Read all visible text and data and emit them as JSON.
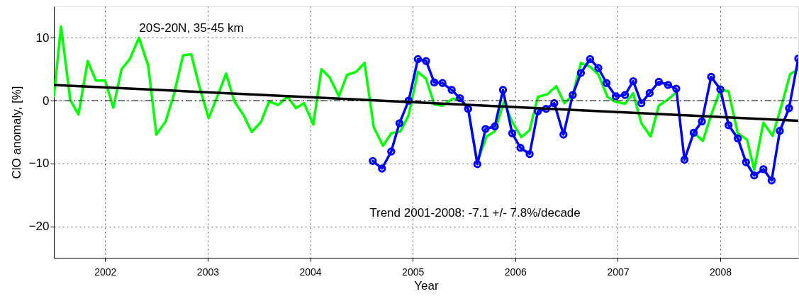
{
  "chart_data": {
    "type": "line",
    "xlabel": "Year",
    "ylabel": "ClO anomaly, [%]",
    "xlim": [
      2001.5,
      2008.76
    ],
    "ylim": [
      -25,
      15
    ],
    "xticks": [
      2002,
      2003,
      2004,
      2005,
      2006,
      2007,
      2008
    ],
    "yticks": [
      -20,
      -10,
      0,
      10
    ],
    "grid": true,
    "legend": false,
    "annotations": [
      "20S-20N, 35-45 km",
      "Trend 2001-2008: -7.1 +/- 7.8%/decade"
    ],
    "ref_lines": [
      {
        "axis": "y",
        "value": 0,
        "color": "#000000",
        "line_style": "dashed"
      }
    ],
    "series": [
      {
        "color": "#00ff00",
        "marker": "none",
        "x": [
          2001.5,
          2001.57,
          2001.66,
          2001.74,
          2001.83,
          2001.91,
          2002.0,
          2002.08,
          2002.16,
          2002.24,
          2002.33,
          2002.42,
          2002.5,
          2002.59,
          2002.67,
          2002.76,
          2002.84,
          2002.92,
          2003.01,
          2003.1,
          2003.18,
          2003.26,
          2003.35,
          2003.43,
          2003.52,
          2003.6,
          2003.69,
          2003.78,
          2003.86,
          2003.94,
          2004.03,
          2004.11,
          2004.19,
          2004.28,
          2004.36,
          2004.45,
          2004.53,
          2004.62,
          2004.71,
          2004.79,
          2004.88,
          2004.96,
          2005.05,
          2005.13,
          2005.21,
          2005.29,
          2005.39,
          2005.46,
          2005.54,
          2005.63,
          2005.72,
          2005.8,
          2005.89,
          2005.97,
          2006.06,
          2006.14,
          2006.22,
          2006.31,
          2006.4,
          2006.48,
          2006.56,
          2006.64,
          2006.73,
          2006.81,
          2006.9,
          2006.98,
          2007.07,
          2007.15,
          2007.23,
          2007.32,
          2007.4,
          2007.49,
          2007.57,
          2007.66,
          2007.74,
          2007.83,
          2007.91,
          2008.0,
          2008.08,
          2008.17,
          2008.26,
          2008.33,
          2008.42,
          2008.51,
          2008.6,
          2008.68,
          2008.76
        ],
        "values": [
          0.7,
          11.8,
          0.1,
          -2.2,
          6.3,
          3.2,
          3.2,
          -1.1,
          5.0,
          6.6,
          10.0,
          5.6,
          -5.4,
          -3.3,
          0.9,
          7.2,
          7.4,
          2.2,
          -2.8,
          0.9,
          4.3,
          -0.1,
          -2.3,
          -5.0,
          -3.4,
          -0.1,
          -0.7,
          0.7,
          -1.2,
          -0.4,
          -3.8,
          5.0,
          3.7,
          0.7,
          4.1,
          4.6,
          6.0,
          -4.2,
          -7.2,
          -5.2,
          -4.9,
          -2.3,
          4.6,
          3.5,
          -0.6,
          -0.8,
          0.3,
          0.3,
          -1.2,
          -9.8,
          -5.7,
          -4.9,
          -0.1,
          -3.4,
          -5.8,
          -4.7,
          0.6,
          1.0,
          2.3,
          -0.4,
          0.9,
          6.0,
          5.4,
          4.2,
          0.6,
          -0.2,
          -0.5,
          1.2,
          -3.6,
          -5.7,
          -0.8,
          0.2,
          1.3,
          null,
          -5.1,
          -6.4,
          -2.3,
          1.7,
          1.5,
          -5.2,
          -6.2,
          -11.0,
          -3.5,
          -5.6,
          -0.6,
          4.2,
          5.0
        ]
      },
      {
        "color": "#0000ff",
        "marker": "circle",
        "x": [
          2004.61,
          2004.7,
          2004.79,
          2004.87,
          2004.96,
          2005.05,
          2005.13,
          2005.21,
          2005.29,
          2005.38,
          2005.46,
          2005.54,
          2005.63,
          2005.71,
          2005.8,
          2005.88,
          2005.97,
          2006.05,
          2006.14,
          2006.22,
          2006.3,
          2006.38,
          2006.47,
          2006.56,
          2006.64,
          2006.73,
          2006.81,
          2006.89,
          2006.98,
          2007.07,
          2007.15,
          2007.23,
          2007.31,
          2007.4,
          2007.49,
          2007.57,
          2007.65,
          2007.74,
          2007.82,
          2007.91,
          2008.0,
          2008.08,
          2008.17,
          2008.25,
          2008.33,
          2008.42,
          2008.5,
          2008.58,
          2008.67,
          2008.76
        ],
        "values": [
          -9.6,
          -10.8,
          -8.1,
          -3.6,
          0.0,
          6.6,
          6.3,
          2.9,
          2.8,
          1.7,
          0.4,
          -1.3,
          -10.1,
          -4.5,
          -4.1,
          1.7,
          -5.2,
          -7.5,
          -8.5,
          -1.7,
          -1.3,
          -0.4,
          -5.4,
          0.9,
          4.4,
          6.6,
          5.2,
          2.8,
          0.7,
          0.9,
          3.1,
          -0.4,
          1.2,
          3.0,
          2.5,
          1.9,
          -9.4,
          -5.1,
          -3.3,
          3.8,
          1.8,
          -3.9,
          -6.0,
          -9.8,
          -11.9,
          -10.9,
          -12.7,
          -4.8,
          -1.2,
          6.7
        ]
      },
      {
        "color": "#000000",
        "marker": "none",
        "x": [
          2001.5,
          2008.76
        ],
        "values": [
          2.5,
          -3.2
        ]
      }
    ]
  }
}
